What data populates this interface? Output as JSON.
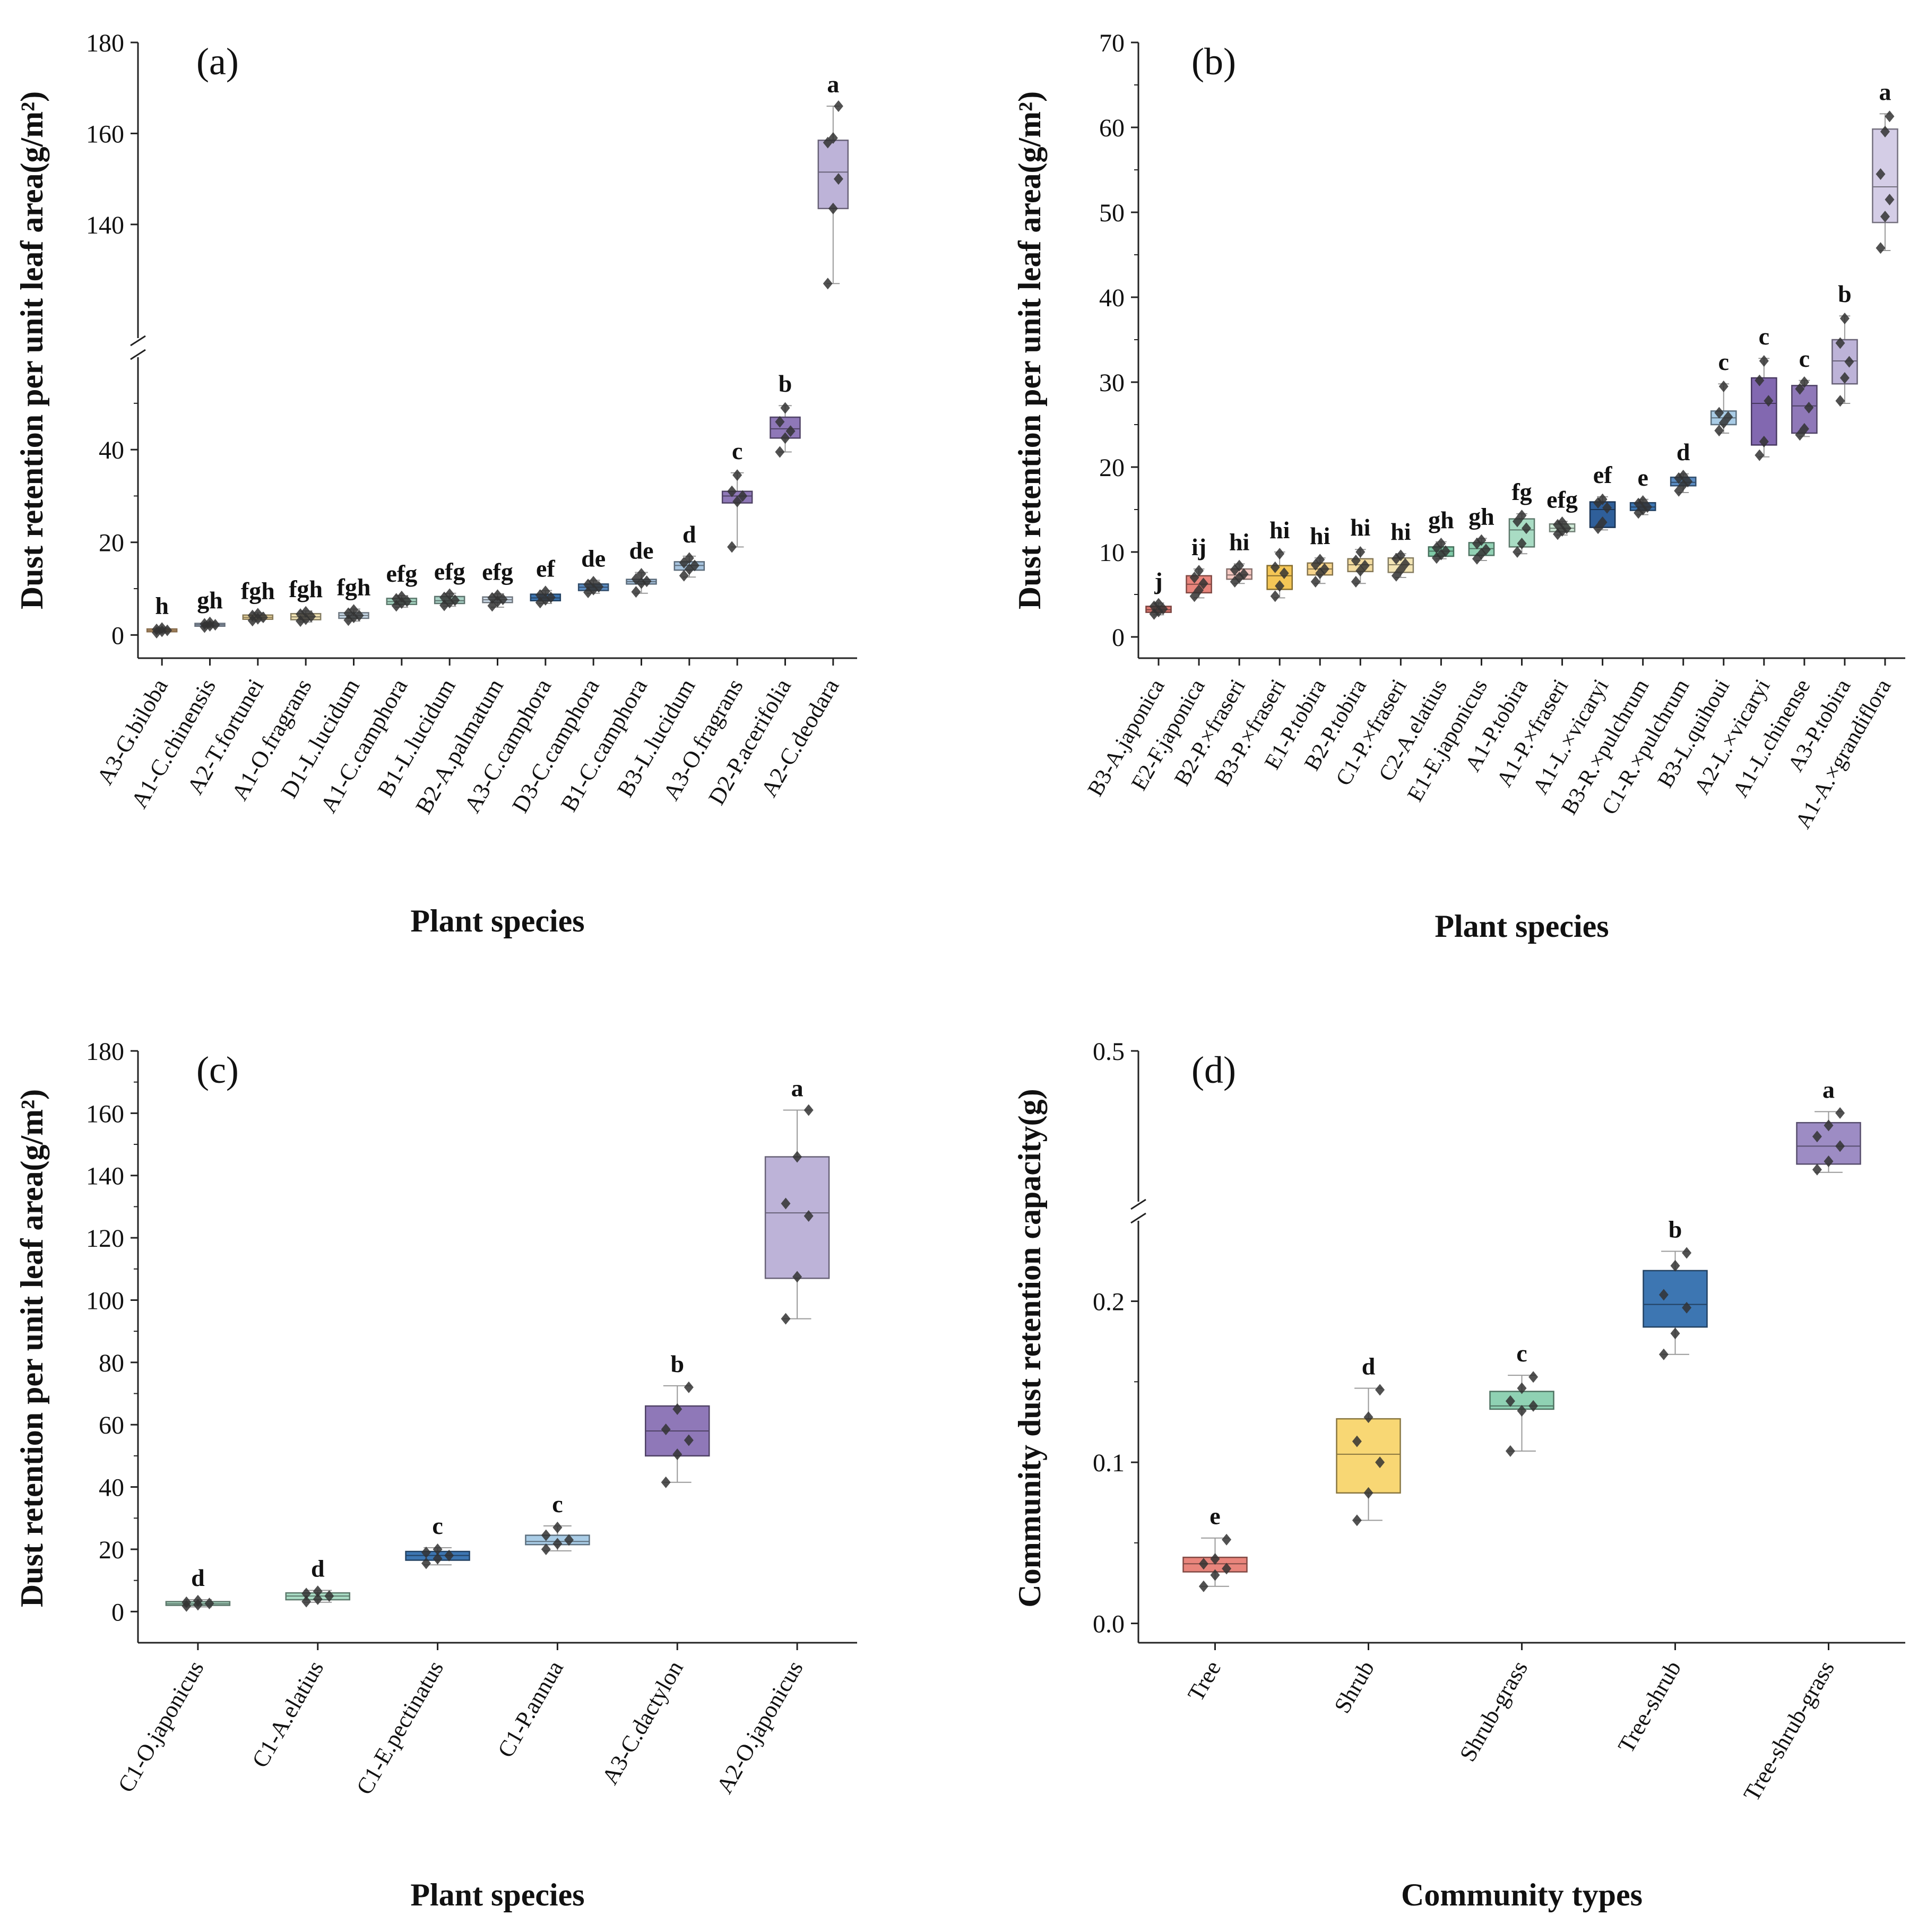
{
  "chart_data": [
    {
      "id": "a",
      "type": "box",
      "panel_label": "(a)",
      "xlabel": "Plant species",
      "ylabel": "Dust retention per unit leaf area(g/m²)",
      "y_axis_break": true,
      "y_lower_range": [
        -5,
        58
      ],
      "y_upper_range": [
        117,
        180
      ],
      "y_lower_ticks": [
        0,
        20,
        40
      ],
      "y_upper_ticks": [
        140,
        160,
        180
      ],
      "categories": [
        "A3-G.biloba",
        "A1-C.chinensis",
        "A2-T.fortunei",
        "A1-O.fragrans",
        "D1-L.lucidum",
        "A1-C.camphora",
        "B1-L.lucidum",
        "B2-A.palmatum",
        "A3-C.camphora",
        "D3-C.camphora",
        "B1-C.camphora",
        "B3-L.lucidum",
        "A3-O.fragrans",
        "D2-P.acerifolia",
        "A2-C.deodara"
      ],
      "letters": [
        "h",
        "gh",
        "fgh",
        "fgh",
        "fgh",
        "efg",
        "efg",
        "efg",
        "ef",
        "de",
        "de",
        "d",
        "c",
        "b",
        "a"
      ],
      "colors": [
        "#f6c48a",
        "#b8c8de",
        "#f3dca0",
        "#f3e5b4",
        "#c9dbea",
        "#a8d8c4",
        "#a8d0c4",
        "#cbd9e6",
        "#3d76b2",
        "#5b8cc2",
        "#a7c4df",
        "#a7c4df",
        "#8f78b8",
        "#8f78b8",
        "#bdb3d8"
      ],
      "boxes": [
        {
          "min": 0.4,
          "q1": 0.7,
          "median": 1.0,
          "q3": 1.3,
          "max": 1.6,
          "points": [
            0.5,
            0.8,
            1.0,
            1.2,
            1.5
          ]
        },
        {
          "min": 1.6,
          "q1": 1.9,
          "median": 2.2,
          "q3": 2.5,
          "max": 2.8,
          "points": [
            1.7,
            2.0,
            2.2,
            2.4,
            2.7
          ]
        },
        {
          "min": 3.0,
          "q1": 3.4,
          "median": 3.8,
          "q3": 4.3,
          "max": 4.8,
          "points": [
            3.1,
            3.5,
            3.8,
            4.2,
            4.6
          ]
        },
        {
          "min": 2.8,
          "q1": 3.3,
          "median": 3.9,
          "q3": 4.6,
          "max": 5.2,
          "points": [
            3.0,
            3.4,
            4.0,
            4.5,
            5.0
          ]
        },
        {
          "min": 3.0,
          "q1": 3.6,
          "median": 4.2,
          "q3": 4.8,
          "max": 5.6,
          "points": [
            3.2,
            3.8,
            4.2,
            4.7,
            5.4
          ]
        },
        {
          "min": 6.0,
          "q1": 6.6,
          "median": 7.2,
          "q3": 7.9,
          "max": 8.5,
          "points": [
            6.3,
            6.9,
            7.3,
            7.8,
            8.3
          ]
        },
        {
          "min": 6.2,
          "q1": 6.8,
          "median": 7.4,
          "q3": 8.3,
          "max": 9.0,
          "points": [
            6.4,
            7.0,
            7.5,
            8.1,
            8.8
          ]
        },
        {
          "min": 6.0,
          "q1": 7.0,
          "median": 7.6,
          "q3": 8.2,
          "max": 8.9,
          "points": [
            6.3,
            7.2,
            7.7,
            8.0,
            8.6
          ]
        },
        {
          "min": 6.8,
          "q1": 7.4,
          "median": 8.0,
          "q3": 8.8,
          "max": 9.6,
          "points": [
            7.0,
            7.6,
            8.1,
            8.6,
            9.4
          ]
        },
        {
          "min": 9.0,
          "q1": 9.6,
          "median": 10.3,
          "q3": 11.0,
          "max": 11.8,
          "points": [
            9.2,
            9.8,
            10.4,
            10.9,
            11.5
          ]
        },
        {
          "min": 9.0,
          "q1": 11.0,
          "median": 11.5,
          "q3": 12.0,
          "max": 13.5,
          "points": [
            9.3,
            11.2,
            11.6,
            12.1,
            13.2
          ]
        },
        {
          "min": 12.5,
          "q1": 14.0,
          "median": 15.0,
          "q3": 15.8,
          "max": 17.0,
          "points": [
            12.8,
            14.2,
            15.0,
            15.6,
            16.6
          ]
        },
        {
          "min": 19.0,
          "q1": 28.5,
          "median": 30.0,
          "q3": 31.0,
          "max": 35.0,
          "points": [
            19.0,
            28.8,
            30.0,
            31.0,
            34.5
          ]
        },
        {
          "min": 39.5,
          "q1": 42.5,
          "median": 44.5,
          "q3": 47.0,
          "max": 49.5,
          "points": [
            39.5,
            42.5,
            44.0,
            46.0,
            49.0
          ]
        },
        {
          "min": 127.0,
          "q1": 143.5,
          "median": 151.5,
          "q3": 158.5,
          "max": 166.0,
          "points": [
            127.0,
            143.5,
            150.0,
            158.0,
            159.0,
            166.0
          ]
        }
      ]
    },
    {
      "id": "b",
      "type": "box",
      "panel_label": "(b)",
      "xlabel": "Plant species",
      "ylabel": "Dust retention per unit leaf area(g/m²)",
      "y_axis_break": false,
      "ylim": [
        -2.5,
        70
      ],
      "y_ticks": [
        0,
        10,
        20,
        30,
        40,
        50,
        60,
        70
      ],
      "categories": [
        "B3-A.japonica",
        "E2-F.japonica",
        "B2-P.×fraseri",
        "B3-P.×fraseri",
        "E1-P.tobira",
        "B2-P.tobira",
        "C1-P.×fraseri",
        "C2-A.elatius",
        "E1-E.japonicus",
        "A1-P.tobira",
        "A1-P.×fraseri",
        "A1-L.×vicaryi",
        "B3-R.×pulchrum",
        "C1-R.×pulchrum",
        "B3-L.quihoui",
        "A2-L.×vicaryi",
        "A1-L.chinense",
        "A3-P.tobira",
        "A1-A.×grandiflora"
      ],
      "letters": [
        "j",
        "ij",
        "hi",
        "hi",
        "hi",
        "hi",
        "hi",
        "gh",
        "gh",
        "fg",
        "efg",
        "ef",
        "e",
        "d",
        "c",
        "c",
        "c",
        "b",
        "a"
      ],
      "colors": [
        "#e07a72",
        "#e9857c",
        "#f6c9c2",
        "#f4c656",
        "#f6d48c",
        "#f3dca0",
        "#f3e5b4",
        "#7fcaa7",
        "#92d1b4",
        "#a9dcc4",
        "#d0ead8",
        "#2f5f9a",
        "#3d76b2",
        "#5b8cc2",
        "#a9cce6",
        "#8268b0",
        "#8f78b8",
        "#bdb3d8",
        "#d4cde6"
      ],
      "boxes": [
        {
          "min": 2.6,
          "q1": 2.9,
          "median": 3.2,
          "q3": 3.6,
          "max": 4.0,
          "points": [
            2.7,
            3.0,
            3.3,
            3.6,
            3.9
          ]
        },
        {
          "min": 4.6,
          "q1": 5.2,
          "median": 6.2,
          "q3": 7.2,
          "max": 8.0,
          "points": [
            4.8,
            5.5,
            6.3,
            7.0,
            7.8
          ]
        },
        {
          "min": 6.3,
          "q1": 6.8,
          "median": 7.3,
          "q3": 8.0,
          "max": 8.6,
          "points": [
            6.5,
            7.0,
            7.4,
            7.9,
            8.4
          ]
        },
        {
          "min": 4.6,
          "q1": 5.6,
          "median": 7.2,
          "q3": 8.4,
          "max": 10.0,
          "points": [
            4.8,
            6.0,
            7.5,
            8.2,
            9.8
          ]
        },
        {
          "min": 6.3,
          "q1": 7.3,
          "median": 8.0,
          "q3": 8.7,
          "max": 9.3,
          "points": [
            6.5,
            7.5,
            8.0,
            8.5,
            9.1
          ]
        },
        {
          "min": 6.3,
          "q1": 7.7,
          "median": 8.5,
          "q3": 9.2,
          "max": 10.3,
          "points": [
            6.5,
            7.8,
            8.4,
            9.0,
            10.0
          ]
        },
        {
          "min": 7.0,
          "q1": 7.6,
          "median": 8.5,
          "q3": 9.3,
          "max": 9.8,
          "points": [
            7.2,
            7.9,
            8.6,
            9.2,
            9.6
          ]
        },
        {
          "min": 9.2,
          "q1": 9.5,
          "median": 10.1,
          "q3": 10.6,
          "max": 11.2,
          "points": [
            9.3,
            9.7,
            10.1,
            10.5,
            11.0
          ]
        },
        {
          "min": 9.0,
          "q1": 9.6,
          "median": 10.4,
          "q3": 11.1,
          "max": 11.6,
          "points": [
            9.2,
            9.8,
            10.3,
            11.0,
            11.4
          ]
        },
        {
          "min": 9.8,
          "q1": 10.6,
          "median": 12.6,
          "q3": 13.9,
          "max": 14.5,
          "points": [
            10.0,
            11.0,
            12.8,
            13.6,
            14.3
          ]
        },
        {
          "min": 12.0,
          "q1": 12.4,
          "median": 12.8,
          "q3": 13.3,
          "max": 13.6,
          "points": [
            12.1,
            12.5,
            12.8,
            13.2,
            13.5
          ]
        },
        {
          "min": 12.6,
          "q1": 12.9,
          "median": 15.0,
          "q3": 15.9,
          "max": 16.5,
          "points": [
            12.8,
            13.5,
            15.2,
            15.8,
            16.2
          ]
        },
        {
          "min": 14.4,
          "q1": 14.9,
          "median": 15.3,
          "q3": 15.8,
          "max": 16.2,
          "points": [
            14.6,
            15.0,
            15.3,
            15.7,
            16.0
          ]
        },
        {
          "min": 17.0,
          "q1": 17.8,
          "median": 18.2,
          "q3": 18.8,
          "max": 19.2,
          "points": [
            17.2,
            17.9,
            18.3,
            18.7,
            19.0
          ]
        },
        {
          "min": 24.0,
          "q1": 25.0,
          "median": 25.8,
          "q3": 26.6,
          "max": 29.8,
          "points": [
            24.3,
            25.2,
            25.9,
            26.4,
            29.5
          ]
        },
        {
          "min": 21.2,
          "q1": 22.6,
          "median": 27.5,
          "q3": 30.5,
          "max": 32.8,
          "points": [
            21.4,
            23.0,
            27.8,
            30.2,
            32.5
          ]
        },
        {
          "min": 23.6,
          "q1": 24.0,
          "median": 27.2,
          "q3": 29.6,
          "max": 30.2,
          "points": [
            23.8,
            24.5,
            27.0,
            29.2,
            30.0
          ]
        },
        {
          "min": 27.5,
          "q1": 29.8,
          "median": 32.5,
          "q3": 35.0,
          "max": 37.8,
          "points": [
            27.8,
            30.5,
            32.4,
            34.6,
            37.5
          ]
        },
        {
          "min": 45.5,
          "q1": 48.8,
          "median": 53.0,
          "q3": 59.8,
          "max": 61.6,
          "points": [
            45.8,
            49.5,
            51.5,
            54.5,
            59.5,
            61.3
          ]
        }
      ]
    },
    {
      "id": "c",
      "type": "box",
      "panel_label": "(c)",
      "xlabel": "Plant species",
      "ylabel": "Dust retention per unit leaf area(g/m²)",
      "y_axis_break": false,
      "ylim": [
        -10,
        180
      ],
      "y_ticks": [
        0,
        20,
        40,
        60,
        80,
        100,
        120,
        140,
        160,
        180
      ],
      "categories": [
        "C1-O.japonicus",
        "C1-A.elatius",
        "C1-E.pectinatus",
        "C1-P.annua",
        "A3-C.dactylon",
        "A2-O.japonicus"
      ],
      "letters": [
        "d",
        "d",
        "c",
        "c",
        "b",
        "a"
      ],
      "colors": [
        "#a9d9c3",
        "#a9dcc4",
        "#3d76b2",
        "#a9cce6",
        "#8f78b8",
        "#bdb3d8"
      ],
      "boxes": [
        {
          "min": 1.5,
          "q1": 2.0,
          "median": 2.5,
          "q3": 3.2,
          "max": 3.8,
          "points": [
            1.8,
            2.2,
            2.6,
            3.0,
            3.5
          ]
        },
        {
          "min": 3.0,
          "q1": 3.8,
          "median": 5.0,
          "q3": 6.0,
          "max": 6.8,
          "points": [
            3.2,
            4.0,
            5.0,
            5.8,
            6.5
          ]
        },
        {
          "min": 15.0,
          "q1": 16.5,
          "median": 18.0,
          "q3": 19.3,
          "max": 20.5,
          "points": [
            15.5,
            17.0,
            18.0,
            19.0,
            20.0
          ]
        },
        {
          "min": 19.5,
          "q1": 21.5,
          "median": 22.5,
          "q3": 24.5,
          "max": 27.5,
          "points": [
            20.0,
            21.8,
            23.0,
            24.5,
            27.0
          ]
        },
        {
          "min": 41.5,
          "q1": 50.0,
          "median": 58.0,
          "q3": 66.0,
          "max": 72.5,
          "points": [
            41.5,
            50.5,
            55.0,
            58.5,
            65.0,
            72.0
          ]
        },
        {
          "min": 94.0,
          "q1": 107.0,
          "median": 128.0,
          "q3": 146.0,
          "max": 161.0,
          "points": [
            94.0,
            107.5,
            127.0,
            131.0,
            146.0,
            161.0
          ]
        }
      ]
    },
    {
      "id": "d",
      "type": "box",
      "panel_label": "(d)",
      "xlabel": "Community types",
      "ylabel": "Community dust retention capacity(g)",
      "y_axis_break": true,
      "y_lower_range": [
        -0.012,
        0.245
      ],
      "y_upper_range": [
        0.4,
        0.5
      ],
      "y_lower_ticks": [
        0.0,
        0.1,
        0.2
      ],
      "y_upper_ticks": [
        0.5
      ],
      "y_tick_format": 1,
      "categories": [
        "Tree",
        "Shrub",
        "Shrub-grass",
        "Tree-shrub",
        "Tree-shrub-grass"
      ],
      "letters": [
        "e",
        "d",
        "c",
        "b",
        "a"
      ],
      "colors": [
        "#e9857c",
        "#f8d774",
        "#8fd1b3",
        "#3d76b2",
        "#9d8cc4"
      ],
      "boxes": [
        {
          "min": 0.023,
          "q1": 0.032,
          "median": 0.037,
          "q3": 0.041,
          "max": 0.053,
          "points": [
            0.023,
            0.03,
            0.034,
            0.037,
            0.04,
            0.052
          ]
        },
        {
          "min": 0.064,
          "q1": 0.081,
          "median": 0.105,
          "q3": 0.127,
          "max": 0.146,
          "points": [
            0.064,
            0.081,
            0.1,
            0.113,
            0.128,
            0.145
          ]
        },
        {
          "min": 0.107,
          "q1": 0.133,
          "median": 0.135,
          "q3": 0.144,
          "max": 0.154,
          "points": [
            0.107,
            0.132,
            0.135,
            0.138,
            0.146,
            0.153
          ]
        },
        {
          "min": 0.167,
          "q1": 0.184,
          "median": 0.198,
          "q3": 0.219,
          "max": 0.231,
          "points": [
            0.167,
            0.18,
            0.196,
            0.204,
            0.222,
            0.23
          ]
        },
        {
          "min": 0.412,
          "q1": 0.418,
          "median": 0.431,
          "q3": 0.448,
          "max": 0.456,
          "points": [
            0.414,
            0.42,
            0.431,
            0.438,
            0.446,
            0.455
          ]
        }
      ]
    }
  ]
}
